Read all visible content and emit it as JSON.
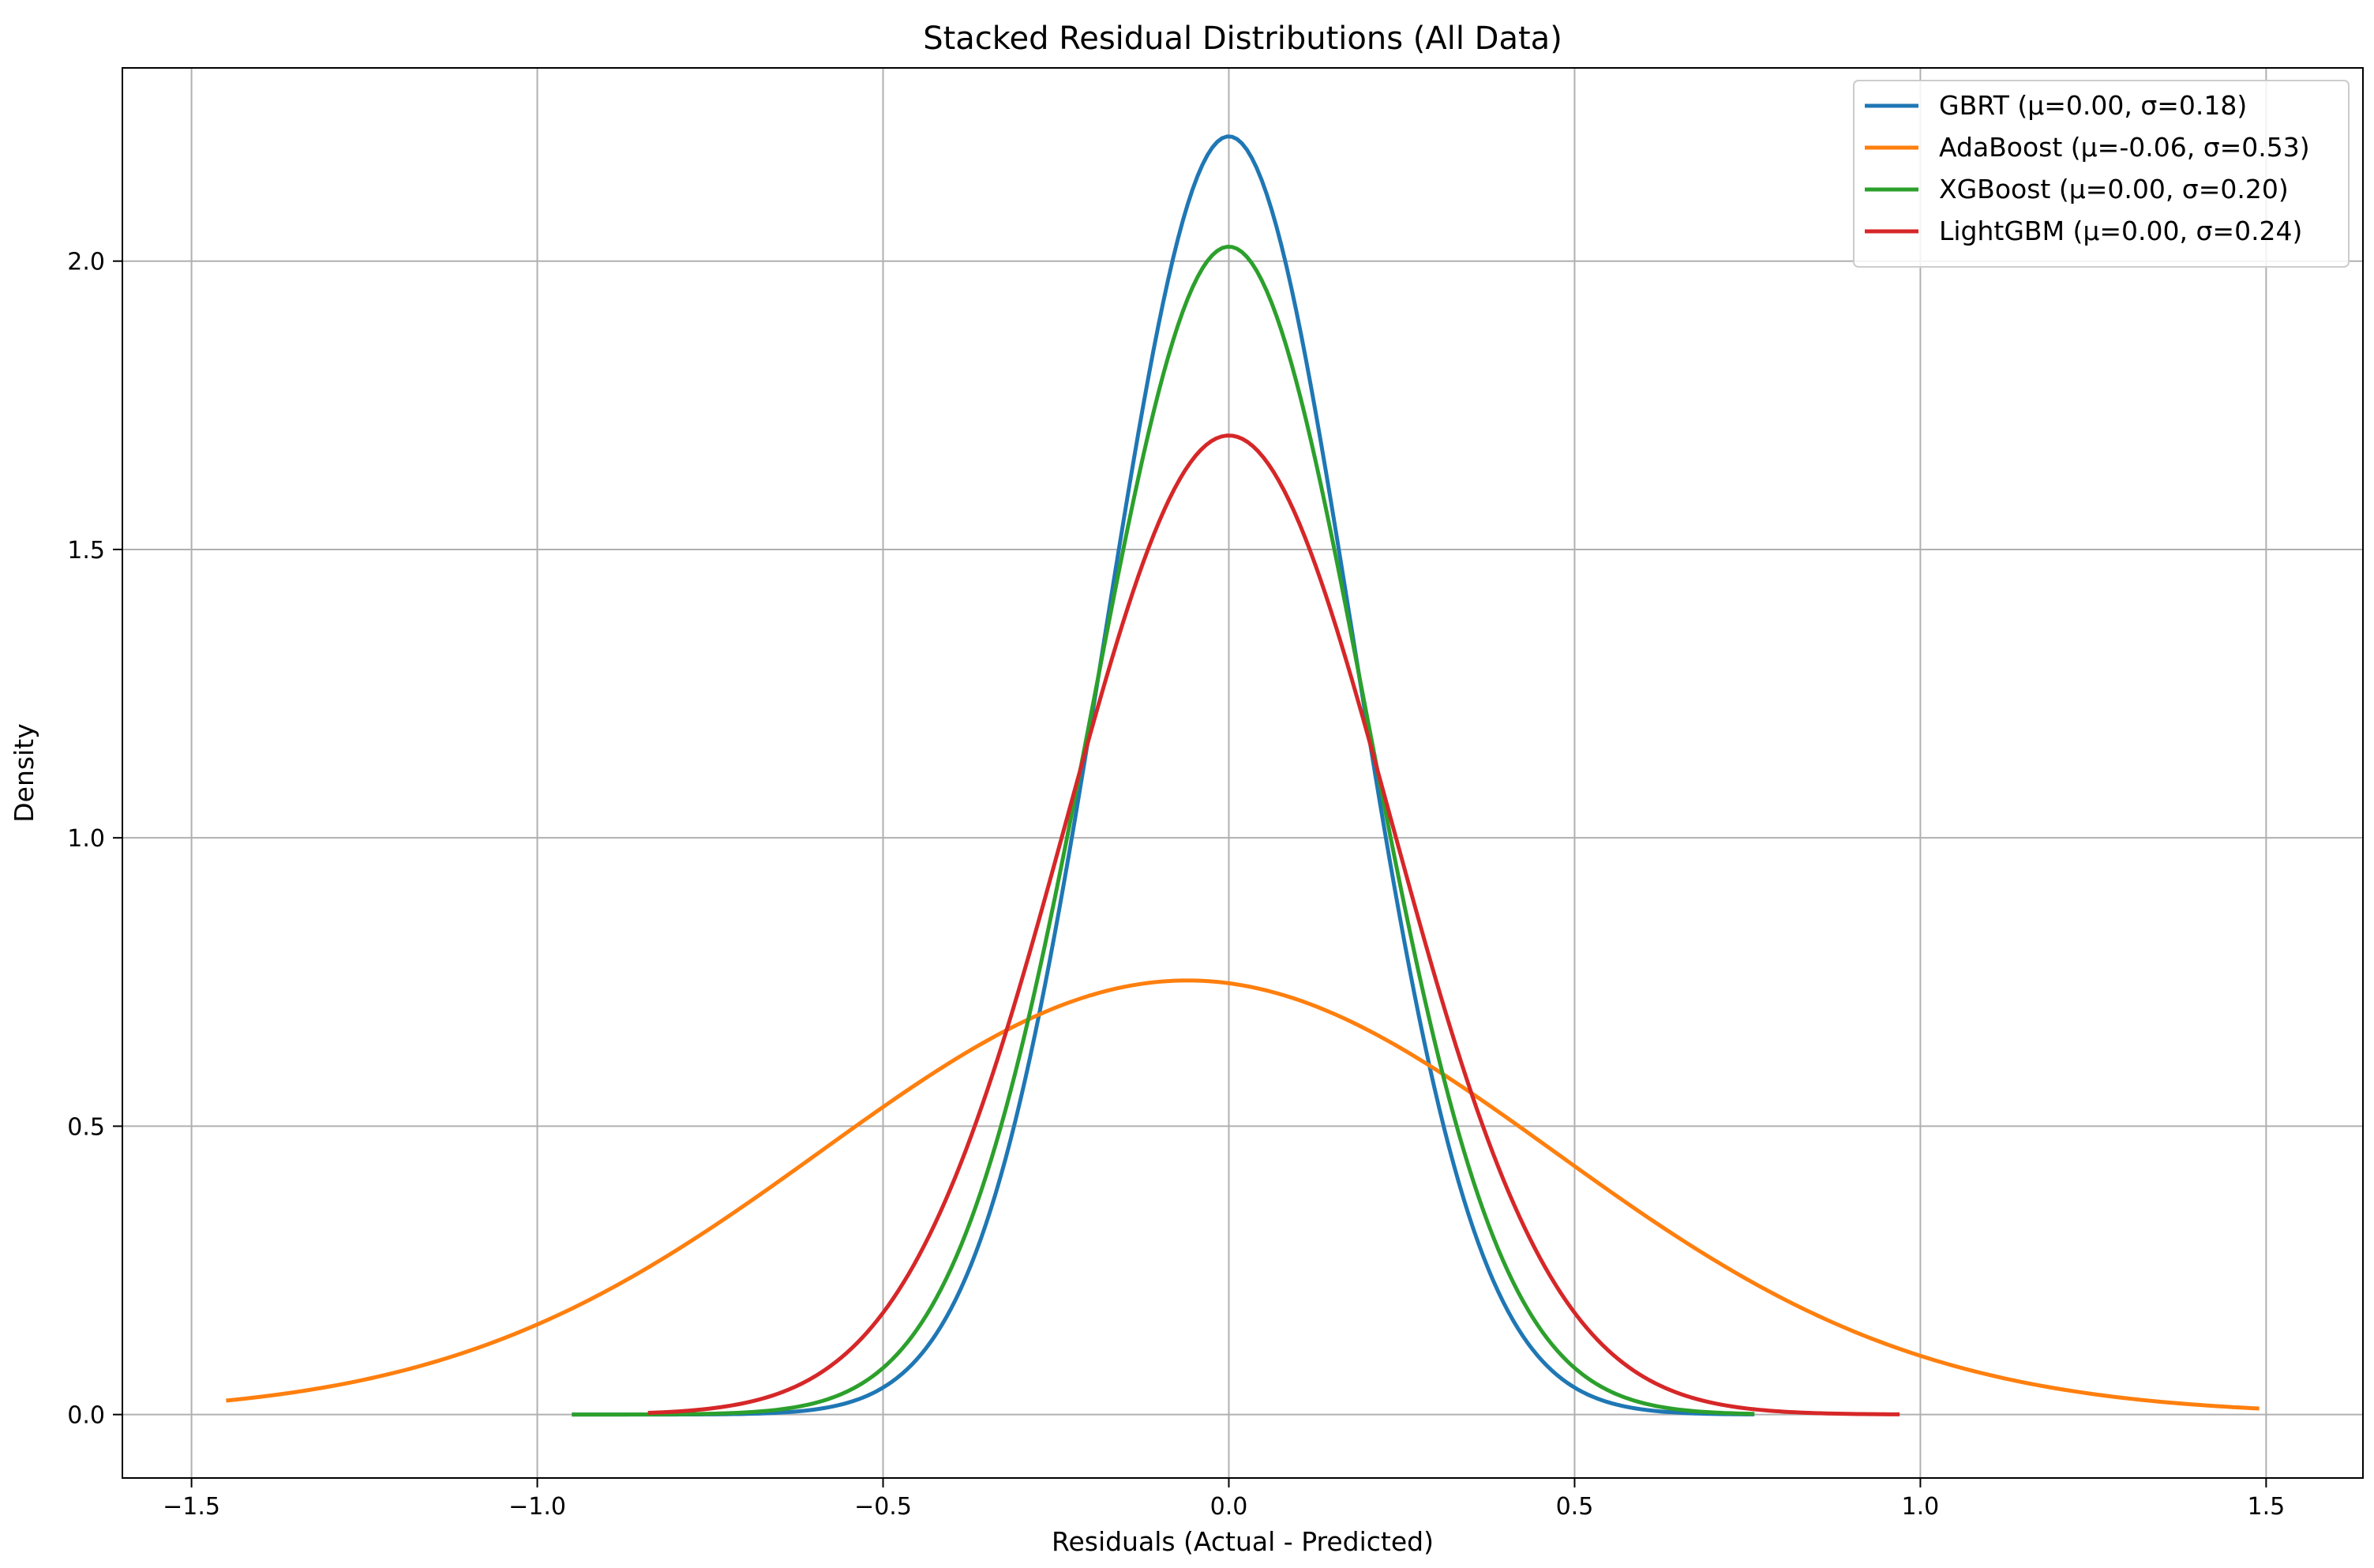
{
  "chart_data": {
    "type": "line",
    "title": "Stacked Residual Distributions (All Data)",
    "xlabel": "Residuals (Actual - Predicted)",
    "ylabel": "Density",
    "xlim": [
      -1.6,
      1.64
    ],
    "ylim": [
      -0.11,
      2.335
    ],
    "xticks": [
      -1.5,
      -1.0,
      -0.5,
      0.0,
      0.5,
      1.0,
      1.5
    ],
    "xtick_labels": [
      "−1.5",
      "−1.0",
      "−0.5",
      "0.0",
      "0.5",
      "1.0",
      "1.5"
    ],
    "yticks": [
      0.0,
      0.5,
      1.0,
      1.5,
      2.0
    ],
    "ytick_labels": [
      "0.0",
      "0.5",
      "1.0",
      "1.5",
      "2.0"
    ],
    "grid": true,
    "legend_position": "top-right",
    "series": [
      {
        "name": "GBRT (μ=0.00, σ=0.18)",
        "mu": 0.0,
        "sigma": 0.18,
        "x_range": [
          -0.95,
          0.76
        ],
        "color": "#1f77b4"
      },
      {
        "name": "AdaBoost (μ=-0.06, σ=0.53)",
        "mu": -0.06,
        "sigma": 0.53,
        "x_range": [
          -1.45,
          1.49
        ],
        "color": "#ff7f0e"
      },
      {
        "name": "XGBoost (μ=0.00, σ=0.20)",
        "mu": 0.0,
        "sigma": 0.197,
        "x_range": [
          -0.95,
          0.76
        ],
        "color": "#2ca02c"
      },
      {
        "name": "LightGBM (μ=0.00, σ=0.24)",
        "mu": 0.0,
        "sigma": 0.235,
        "x_range": [
          -0.84,
          0.97
        ],
        "color": "#d62728"
      }
    ]
  }
}
